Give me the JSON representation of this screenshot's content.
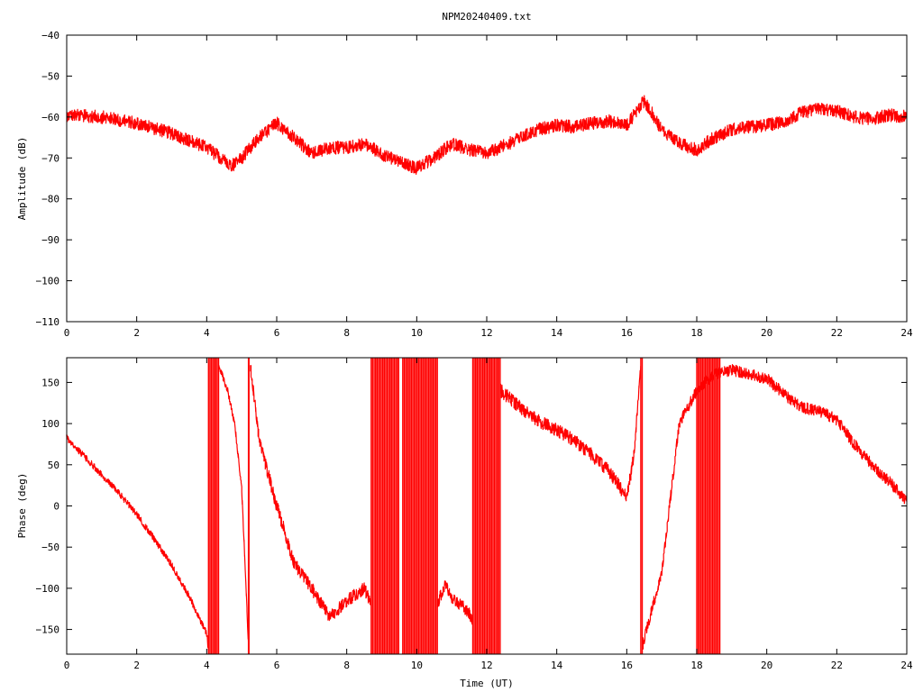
{
  "title": "NPM20240409.txt",
  "chart_data": [
    {
      "type": "line",
      "ylabel": "Amplitude (dB)",
      "xlabel": "",
      "xlim": [
        0,
        24
      ],
      "ylim": [
        -110,
        -40
      ],
      "xticks": [
        0,
        2,
        4,
        6,
        8,
        10,
        12,
        14,
        16,
        18,
        20,
        22,
        24
      ],
      "yticks": [
        -110,
        -100,
        -90,
        -80,
        -70,
        -60,
        -50,
        -40
      ],
      "ytick_labels": [
        "−110",
        "−100",
        "−90",
        "−80",
        "−70",
        "−60",
        "−50",
        "−40"
      ],
      "color": "#ff0000",
      "grid": false,
      "series": [
        {
          "x": [
            0,
            1,
            2,
            3,
            4,
            4.7,
            5,
            5.5,
            6,
            6.5,
            7,
            7.5,
            8,
            8.5,
            9,
            9.5,
            10,
            10.5,
            11,
            11.5,
            12,
            12.5,
            13,
            13.5,
            14,
            14.5,
            15,
            15.5,
            16,
            16.5,
            17,
            17.5,
            18,
            18.5,
            19,
            19.5,
            20,
            20.5,
            21,
            21.5,
            22,
            22.5,
            23,
            23.5,
            24
          ],
          "y": [
            -59.5,
            -60,
            -61.5,
            -64,
            -67.5,
            -72,
            -70,
            -65,
            -61.5,
            -65,
            -69,
            -67.5,
            -67.5,
            -66.5,
            -69,
            -71,
            -72.5,
            -70,
            -66.5,
            -68,
            -69,
            -67,
            -65,
            -63,
            -62,
            -62.5,
            -61.5,
            -61,
            -62,
            -56,
            -63,
            -66.5,
            -68,
            -65,
            -63,
            -62.5,
            -62,
            -61,
            -59,
            -58,
            -58.5,
            -60,
            -60.5,
            -59.5,
            -60
          ],
          "noise": 1.6
        }
      ]
    },
    {
      "type": "line",
      "ylabel": "Phase (deg)",
      "xlabel": "Time (UT)",
      "xlim": [
        0,
        24
      ],
      "ylim": [
        -180,
        180
      ],
      "xticks": [
        0,
        2,
        4,
        6,
        8,
        10,
        12,
        14,
        16,
        18,
        20,
        22,
        24
      ],
      "yticks": [
        -150,
        -100,
        -50,
        0,
        50,
        100,
        150
      ],
      "ytick_labels": [
        "−150",
        "−100",
        "−50",
        "0",
        "50",
        "100",
        "150"
      ],
      "color": "#ff0000",
      "grid": false,
      "series": [
        {
          "x": [
            0,
            0.5,
            1,
            1.5,
            2,
            2.5,
            3,
            3.5,
            4,
            4.05
          ],
          "y": [
            83,
            60,
            38,
            15,
            -10,
            -40,
            -72,
            -110,
            -155,
            -175
          ],
          "noise": 4
        },
        {
          "x": [
            4.35,
            4.6,
            4.8,
            5.0,
            5.2
          ],
          "y": [
            170,
            140,
            100,
            20,
            -175
          ],
          "noise": 4
        },
        {
          "x": [
            5.25,
            5.5,
            6,
            6.5,
            7,
            7.5,
            8,
            8.5,
            8.7
          ],
          "y": [
            170,
            80,
            0,
            -70,
            -100,
            -135,
            -115,
            -100,
            -120
          ],
          "noise": 8
        },
        {
          "x": [
            10.6,
            10.8,
            11,
            11.5,
            11.6
          ],
          "y": [
            -120,
            -95,
            -110,
            -130,
            -140
          ],
          "noise": 8
        },
        {
          "x": [
            12.4,
            13,
            13.5,
            14,
            14.5,
            15,
            15.5,
            16,
            16.2,
            16.4
          ],
          "y": [
            140,
            118,
            103,
            92,
            80,
            62,
            42,
            10,
            60,
            170
          ],
          "noise": 8
        },
        {
          "x": [
            16.45,
            17,
            17.5,
            18,
            18.5,
            19,
            19.5,
            20,
            20.5,
            21,
            21.5,
            22,
            22.5,
            23,
            23.5,
            24
          ],
          "y": [
            -170,
            -80,
            100,
            140,
            160,
            165,
            160,
            155,
            135,
            120,
            115,
            105,
            75,
            50,
            30,
            5
          ],
          "noise": 7
        }
      ],
      "wrap_bands": [
        [
          4.05,
          4.35
        ],
        [
          8.7,
          9.5
        ],
        [
          9.6,
          10.6
        ],
        [
          11.6,
          12.4
        ],
        [
          16.4,
          16.45
        ],
        [
          18.0,
          18.7
        ]
      ],
      "spike_lines": [
        5.2
      ]
    }
  ]
}
